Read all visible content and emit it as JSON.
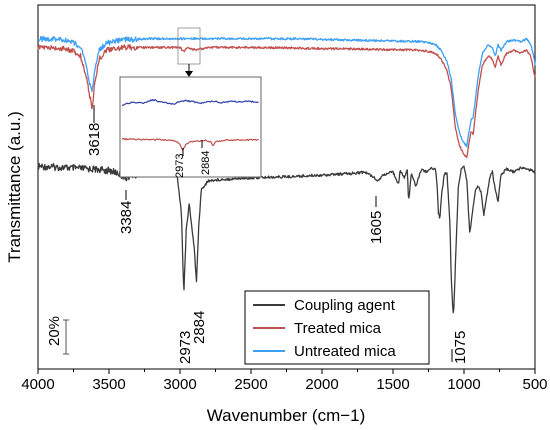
{
  "chart_data": {
    "type": "line",
    "xlabel": "Wavenumber (cm−1)",
    "ylabel": "Transmittance (a.u.)",
    "xlim": [
      4000,
      500
    ],
    "x_reversed": true,
    "grid": false,
    "legend_position": "bottom-right",
    "x_ticks": [
      "4000",
      "3500",
      "3000",
      "2500",
      "2000",
      "1500",
      "1000",
      "500"
    ],
    "scale_bar_label": "20%",
    "series": [
      {
        "name": "Coupling agent",
        "color": "#3a3a3a",
        "x": [
          4000,
          3800,
          3600,
          3500,
          3440,
          3400,
          3384,
          3340,
          3200,
          3100,
          3020,
          2990,
          2973,
          2955,
          2935,
          2915,
          2900,
          2884,
          2868,
          2850,
          2800,
          2700,
          2500,
          2200,
          2000,
          1800,
          1700,
          1640,
          1605,
          1570,
          1500,
          1460,
          1450,
          1420,
          1400,
          1390,
          1370,
          1340,
          1300,
          1260,
          1230,
          1200,
          1190,
          1180,
          1170,
          1160,
          1140,
          1120,
          1100,
          1090,
          1080,
          1075,
          1070,
          1060,
          1040,
          1020,
          1000,
          980,
          960,
          940,
          920,
          900,
          880,
          860,
          820,
          800,
          780,
          760,
          740,
          700,
          650,
          600,
          550,
          500
        ],
        "y": [
          47,
          47.5,
          48,
          48.5,
          49.3,
          50.5,
          51,
          50.3,
          49.5,
          48.8,
          50,
          63,
          91,
          68,
          60,
          69,
          75,
          87,
          68,
          55,
          52,
          51.5,
          51,
          50.5,
          50,
          49.5,
          49,
          50.5,
          52,
          50,
          49,
          53,
          48.5,
          51,
          48,
          59,
          49,
          54,
          48,
          49,
          47.5,
          48,
          53,
          63,
          65,
          58,
          50,
          49,
          66,
          85,
          95,
          98,
          95,
          80,
          54,
          48,
          47,
          52,
          70,
          63,
          55,
          54,
          56,
          64,
          51,
          49,
          55,
          59,
          50,
          48,
          49,
          47.5,
          48,
          49
        ]
      },
      {
        "name": "Treated mica",
        "color": "#c0504d",
        "x": [
          4000,
          3850,
          3760,
          3700,
          3660,
          3635,
          3618,
          3600,
          3570,
          3520,
          3400,
          3200,
          3000,
          2973,
          2950,
          2884,
          2800,
          2500,
          2200,
          2000,
          1800,
          1500,
          1300,
          1200,
          1160,
          1120,
          1090,
          1060,
          1030,
          1000,
          980,
          965,
          950,
          935,
          920,
          900,
          870,
          830,
          800,
          780,
          760,
          740,
          700,
          650,
          600,
          560,
          530,
          510,
          500
        ],
        "y": [
          6,
          6.3,
          7,
          9,
          16,
          23,
          27,
          18,
          10,
          7,
          6,
          6,
          6,
          7.5,
          6.2,
          6.8,
          6,
          6,
          6.2,
          6.5,
          6.5,
          6.8,
          7,
          8,
          10,
          14,
          20,
          34,
          40,
          43,
          44,
          39,
          35,
          36,
          29,
          21,
          12,
          9,
          10,
          13,
          9,
          12,
          8,
          7,
          8,
          7,
          9,
          14,
          16
        ]
      },
      {
        "name": "Untreated mica",
        "color": "#3ea0f5",
        "x": [
          4000,
          3850,
          3760,
          3700,
          3660,
          3640,
          3618,
          3600,
          3570,
          3520,
          3400,
          3200,
          3000,
          2800,
          2500,
          2200,
          2000,
          1800,
          1500,
          1300,
          1200,
          1160,
          1120,
          1090,
          1060,
          1030,
          1000,
          980,
          965,
          950,
          935,
          920,
          900,
          870,
          830,
          800,
          780,
          760,
          740,
          700,
          650,
          600,
          560,
          530,
          510,
          500
        ],
        "y": [
          3,
          3.2,
          4,
          6,
          12,
          18,
          21,
          14,
          7,
          4.5,
          3.3,
          3,
          3,
          3,
          3,
          3,
          3.2,
          3.5,
          3.8,
          4,
          5,
          7,
          11,
          17,
          29,
          36,
          39,
          40,
          35,
          31,
          30,
          24,
          16,
          8,
          5,
          6,
          9,
          5,
          7,
          4,
          3.5,
          4,
          3,
          5,
          9,
          12
        ]
      }
    ],
    "peak_labels": [
      "3618",
      "3384",
      "1605",
      "2973",
      "2884",
      "1075"
    ],
    "inset": {
      "xlim": [
        3150,
        2750
      ],
      "peak_labels": [
        "2973",
        "2884"
      ],
      "series": [
        {
          "name": "Untreated mica",
          "color": "#2f3fa8",
          "x": [
            3150,
            3120,
            3090,
            3060,
            3030,
            3000,
            2973,
            2950,
            2920,
            2884,
            2860,
            2830,
            2800,
            2780,
            2760,
            2750
          ],
          "y": [
            6,
            3.5,
            4.5,
            2,
            4,
            5,
            2.5,
            3,
            4.5,
            2.8,
            4,
            3,
            3.6,
            3.2,
            3.4,
            3.3
          ]
        },
        {
          "name": "Treated mica",
          "color": "#c0504d",
          "x": [
            3150,
            3120,
            3090,
            3060,
            3030,
            3005,
            2990,
            2980,
            2973,
            2965,
            2950,
            2920,
            2900,
            2890,
            2884,
            2878,
            2860,
            2830,
            2800,
            2750
          ],
          "y": [
            3,
            3,
            3.3,
            3.2,
            3.5,
            4,
            5,
            7,
            11,
            7,
            5,
            4,
            4,
            5,
            7.5,
            5,
            4,
            3.5,
            3.5,
            3.3
          ]
        }
      ]
    }
  }
}
